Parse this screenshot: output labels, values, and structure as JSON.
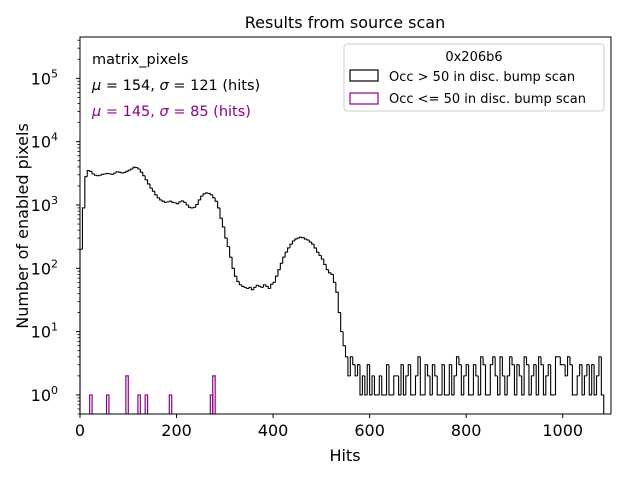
{
  "chart_data": {
    "type": "bar",
    "title": "Results from source scan",
    "xlabel": "Hits",
    "ylabel": "Number of enabled pixels",
    "xlim": [
      0,
      1100
    ],
    "ylim": [
      0.5,
      450000
    ],
    "yscale": "log",
    "bin_width": 5,
    "x_ticks": [
      {
        "value": 0,
        "label": "0"
      },
      {
        "value": 200,
        "label": "200"
      },
      {
        "value": 400,
        "label": "400"
      },
      {
        "value": 600,
        "label": "600"
      },
      {
        "value": 800,
        "label": "800"
      },
      {
        "value": 1000,
        "label": "1000"
      }
    ],
    "y_ticks": [
      {
        "value": 1,
        "base": "10",
        "exp": "0"
      },
      {
        "value": 10,
        "base": "10",
        "exp": "1"
      },
      {
        "value": 100,
        "base": "10",
        "exp": "2"
      },
      {
        "value": 1000,
        "base": "10",
        "exp": "3"
      },
      {
        "value": 10000,
        "base": "10",
        "exp": "4"
      },
      {
        "value": 100000,
        "base": "10",
        "exp": "5"
      }
    ],
    "annotations": {
      "name": "matrix_pixels",
      "stats1": {
        "mu": "154",
        "sigma": "121",
        "unit": "(hits)",
        "color": "#000000"
      },
      "stats2": {
        "mu": "145",
        "sigma": "85",
        "unit": "(hits)",
        "color": "#8b008b"
      }
    },
    "legend": {
      "title": "0x206b6",
      "placement": "upper right",
      "entries": [
        {
          "label": "Occ > 50 in disc. bump scan",
          "color": "#000000"
        },
        {
          "label": "Occ <= 50 in disc. bump scan",
          "color": "#8b008b"
        }
      ]
    },
    "series": [
      {
        "name": "Occ > 50 in disc. bump scan",
        "color": "#000000",
        "x_start": 0,
        "values": [
          200,
          900,
          2800,
          3500,
          3400,
          3100,
          2950,
          2900,
          2950,
          3050,
          3100,
          3150,
          3100,
          3050,
          3200,
          3350,
          3300,
          3200,
          3250,
          3400,
          3550,
          3700,
          3950,
          3900,
          3700,
          3300,
          2900,
          2500,
          2150,
          1850,
          1650,
          1450,
          1300,
          1200,
          1150,
          1100,
          1120,
          1150,
          1100,
          1080,
          1050,
          1120,
          1160,
          1100,
          1000,
          920,
          900,
          920,
          1020,
          1200,
          1380,
          1500,
          1550,
          1520,
          1450,
          1300,
          1150,
          900,
          620,
          450,
          300,
          220,
          150,
          100,
          75,
          62,
          55,
          52,
          50,
          48,
          50,
          46,
          50,
          54,
          52,
          50,
          55,
          52,
          48,
          56,
          60,
          75,
          95,
          120,
          150,
          180,
          210,
          240,
          270,
          290,
          300,
          310,
          305,
          290,
          280,
          260,
          240,
          210,
          180,
          160,
          140,
          115,
          95,
          85,
          80,
          60,
          42,
          20,
          10,
          6,
          4,
          2,
          4,
          3,
          2,
          3,
          1,
          2,
          1,
          3,
          1,
          2,
          1,
          1,
          2,
          1,
          1,
          3,
          1,
          1,
          2,
          2,
          1,
          3,
          1,
          2,
          3,
          1,
          1,
          2,
          4,
          1,
          1,
          3,
          2,
          1,
          3,
          2,
          1,
          1,
          3,
          1,
          1,
          3,
          1,
          2,
          4,
          3,
          1,
          2,
          3,
          1,
          1,
          3,
          2,
          1,
          4,
          3,
          1,
          1,
          3,
          4,
          2,
          1,
          4,
          2,
          1,
          2,
          4,
          3,
          1,
          3,
          2,
          1,
          4,
          3,
          1,
          2,
          3,
          1,
          4,
          3,
          1,
          2,
          3,
          1,
          1,
          4,
          4,
          3,
          3,
          2,
          4,
          3,
          1,
          1,
          2,
          3,
          1,
          2,
          3,
          1,
          3,
          1,
          2,
          4,
          1
        ]
      },
      {
        "name": "Occ <= 50 in disc. bump scan",
        "color": "#8b008b",
        "bins": [
          {
            "x": 20,
            "count": 1
          },
          {
            "x": 55,
            "count": 1
          },
          {
            "x": 95,
            "count": 2
          },
          {
            "x": 120,
            "count": 1
          },
          {
            "x": 135,
            "count": 1
          },
          {
            "x": 185,
            "count": 1
          },
          {
            "x": 270,
            "count": 1
          },
          {
            "x": 275,
            "count": 2
          }
        ]
      }
    ]
  }
}
